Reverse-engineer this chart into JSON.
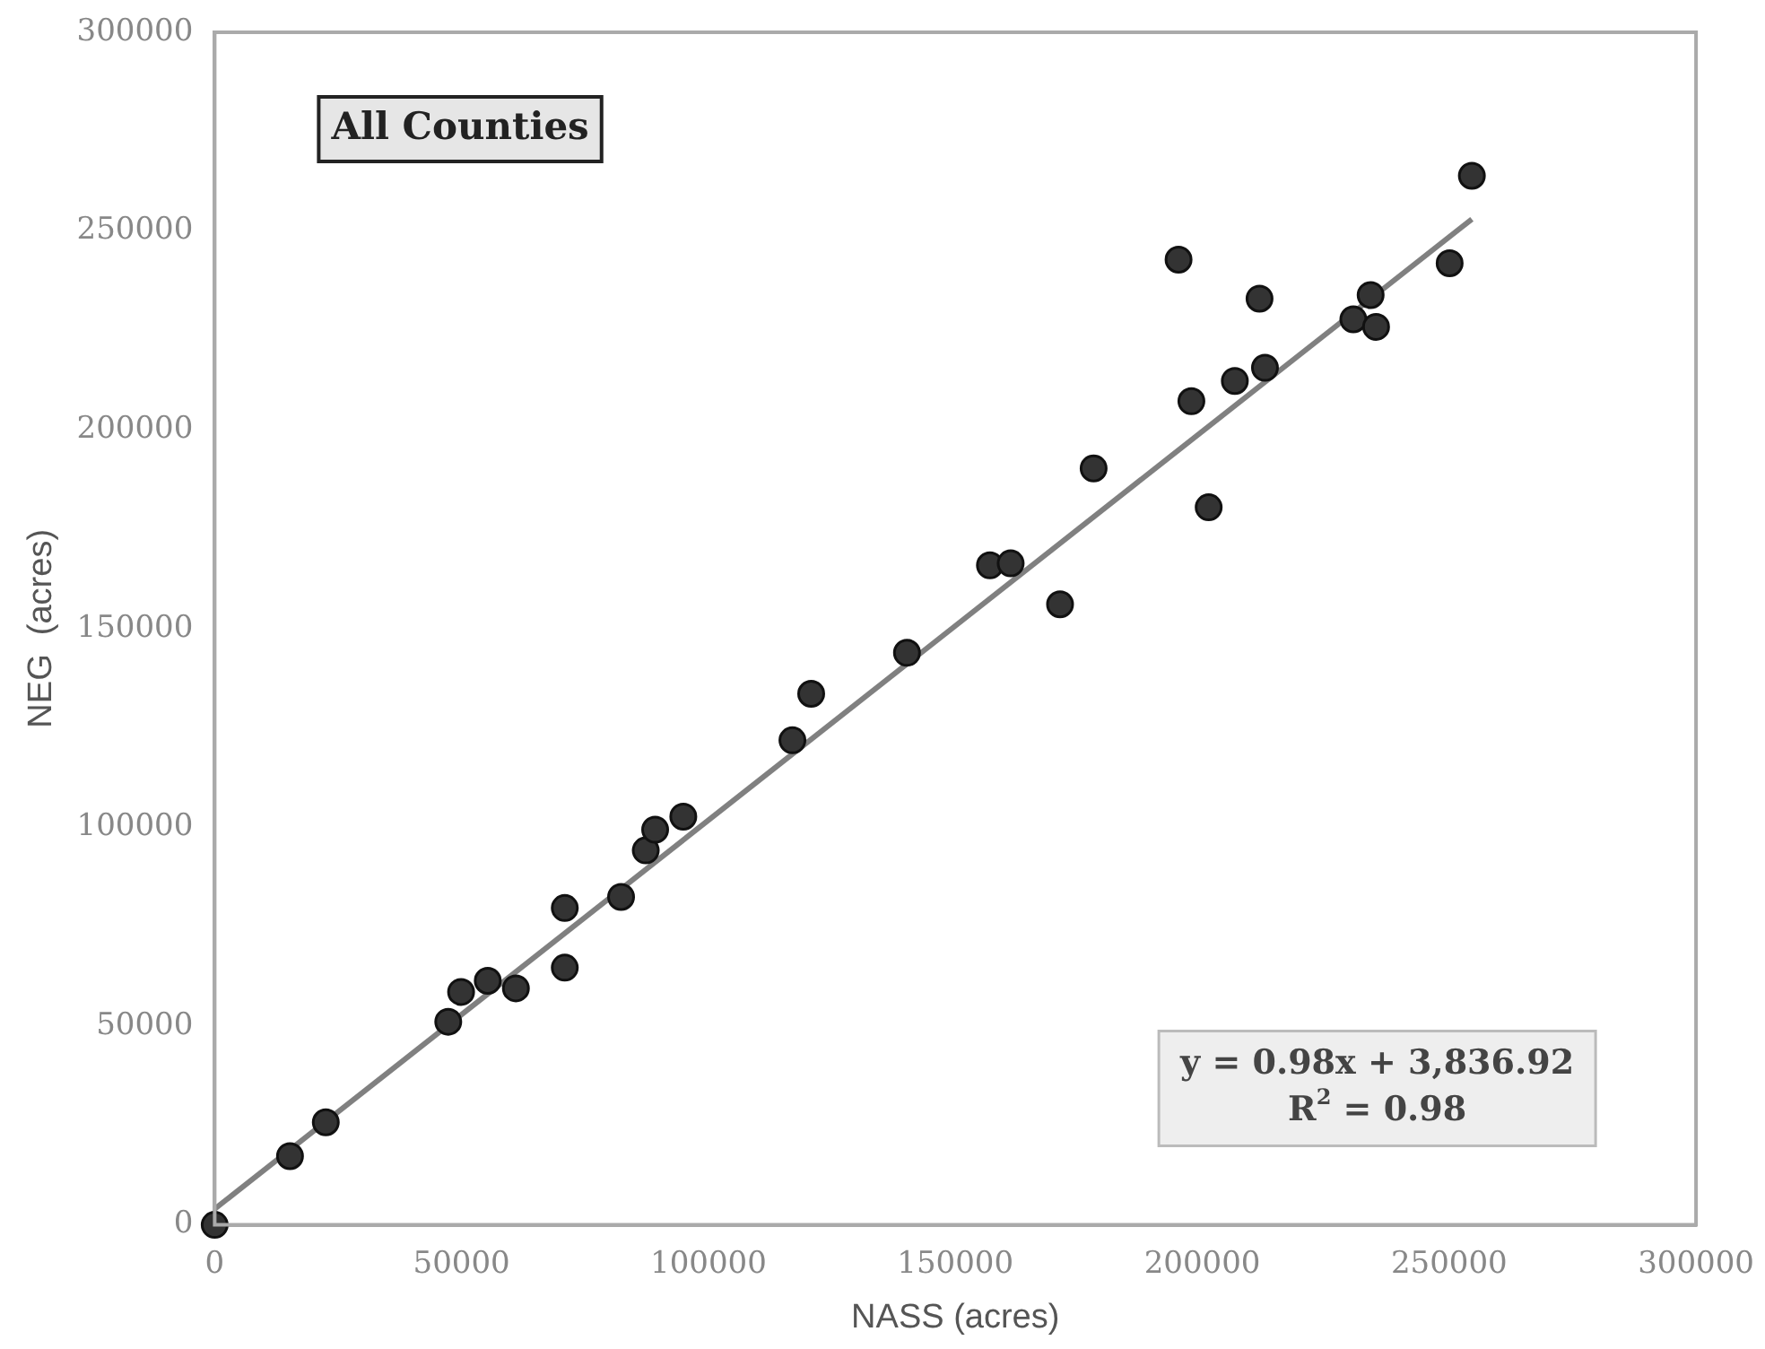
{
  "chart_data": {
    "type": "scatter",
    "xlabel": "NASS (acres)",
    "ylabel": "NEG  (acres)",
    "annotations": [
      "All Counties",
      "y = 0.98x + 3,836.92",
      "R$^{2}$ = 0.98"
    ],
    "xlim": [
      0,
      300000
    ],
    "xticks": [
      0,
      50000,
      100000,
      150000,
      200000,
      250000,
      300000
    ],
    "ylim": [
      0,
      300000
    ],
    "yticks": [
      0,
      50000,
      100000,
      150000,
      200000,
      250000,
      300000
    ],
    "grid": false,
    "legend": false,
    "marker": "circle",
    "series": [
      {
        "color": "#333333",
        "x": [
          0,
          15250,
          22500,
          47300,
          49900,
          55300,
          61000,
          70900,
          70900,
          82300,
          87300,
          89200,
          94900,
          117000,
          120800,
          140200,
          157000,
          161200,
          171200,
          178000,
          195200,
          211600,
          197800,
          206600,
          212700,
          201300,
          230600,
          234100,
          235200,
          250100,
          254600
        ],
        "values": [
          0,
          17300,
          25800,
          51100,
          58600,
          61400,
          59500,
          64700,
          79700,
          82500,
          94200,
          99400,
          102700,
          121900,
          133600,
          143900,
          165900,
          166400,
          156100,
          190300,
          242800,
          233000,
          207200,
          212300,
          215600,
          180500,
          227800,
          233900,
          225900,
          241900,
          263900
        ]
      },
      {
        "type": "line",
        "color": "#808080",
        "marker": "none",
        "line_style": "solid",
        "x": [
          0,
          254600
        ],
        "values": [
          4000,
          253000
        ]
      }
    ]
  }
}
